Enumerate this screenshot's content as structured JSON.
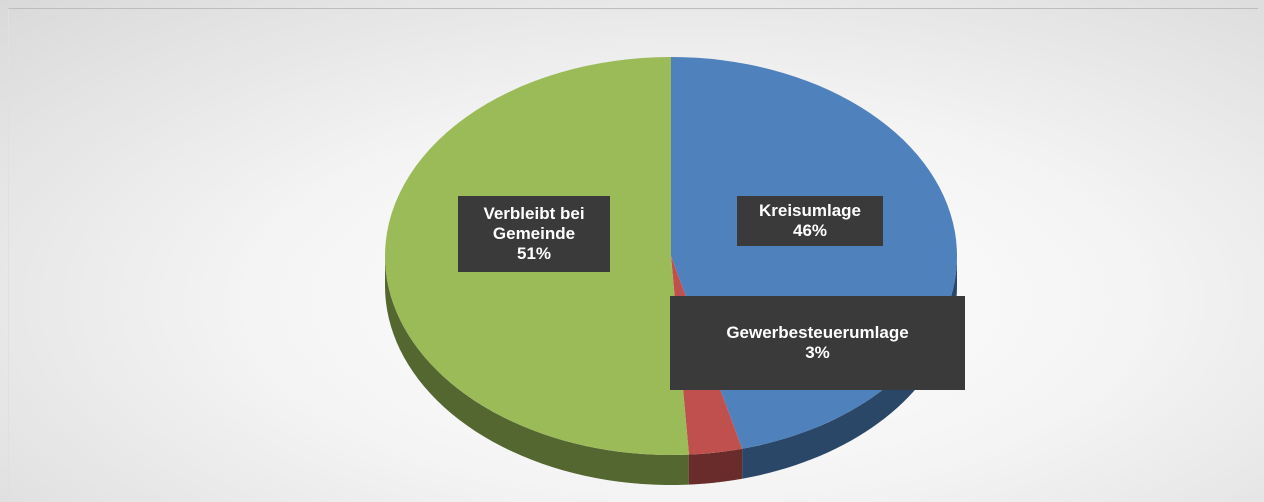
{
  "chart_data": {
    "type": "pie",
    "categories": [
      "Kreisumlage",
      "Gewerbesteuerumlage",
      "Verbleibt bei Gemeinde"
    ],
    "values": [
      46,
      3,
      51
    ],
    "value_labels": [
      "46%",
      "3%",
      "51%"
    ],
    "colors": [
      "#4f81bd",
      "#c0504d",
      "#9bbb59"
    ]
  }
}
